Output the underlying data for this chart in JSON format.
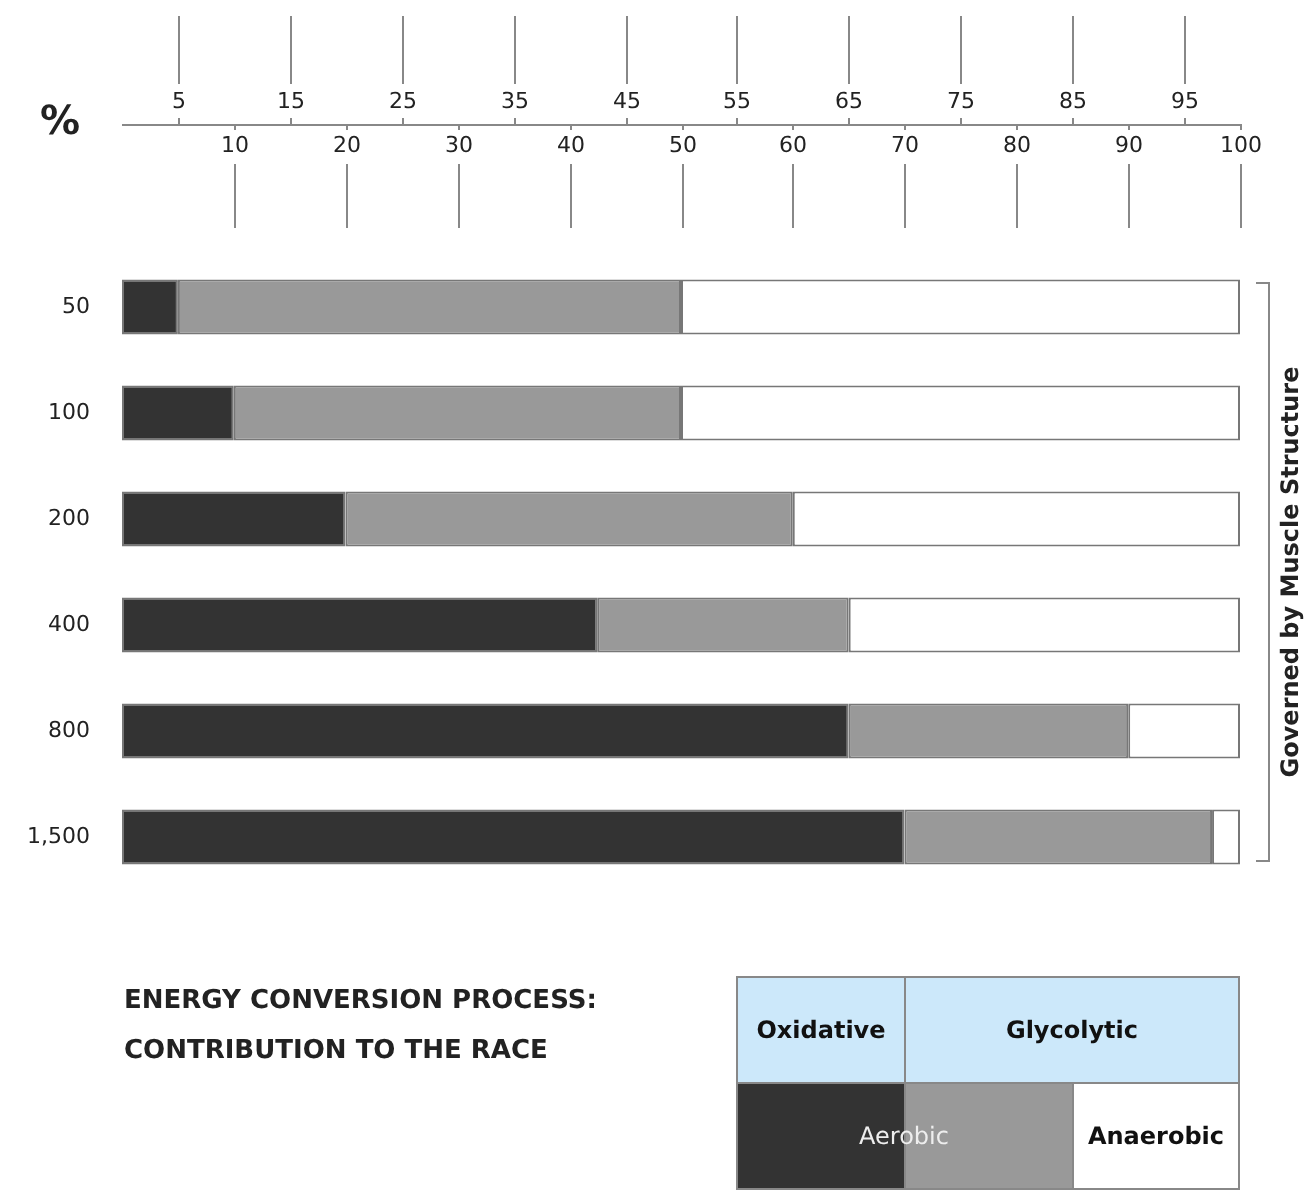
{
  "chart_data": {
    "type": "bar",
    "orientation": "horizontal",
    "stacked": true,
    "title": "ENERGY CONVERSION PROCESS: CONTRIBUTION TO THE RACE",
    "xlabel": "%",
    "categories": [
      "50",
      "100",
      "200",
      "400",
      "800",
      "1,500"
    ],
    "xlim": [
      0,
      100
    ],
    "xticks": [
      10,
      20,
      30,
      40,
      50,
      60,
      70,
      80,
      90,
      100
    ],
    "x2lim": [
      0,
      100
    ],
    "x2ticks": [
      5,
      15,
      25,
      35,
      45,
      55,
      65,
      75,
      85,
      95
    ],
    "series": [
      {
        "color": "#333333",
        "values": [
          5,
          10,
          20,
          42.5,
          65,
          70
        ]
      },
      {
        "color": "#999999",
        "values": [
          45,
          40,
          40,
          22.5,
          25,
          27.5
        ]
      },
      {
        "color": "#ffffff",
        "values": [
          50,
          50,
          40,
          35,
          10,
          2.5
        ]
      }
    ],
    "annotations": [
      "Governed by Muscle Structure",
      "Oxidative",
      "Glycolytic",
      "Aerobic",
      "Anaerobic"
    ],
    "grid": false,
    "legend": false
  }
}
